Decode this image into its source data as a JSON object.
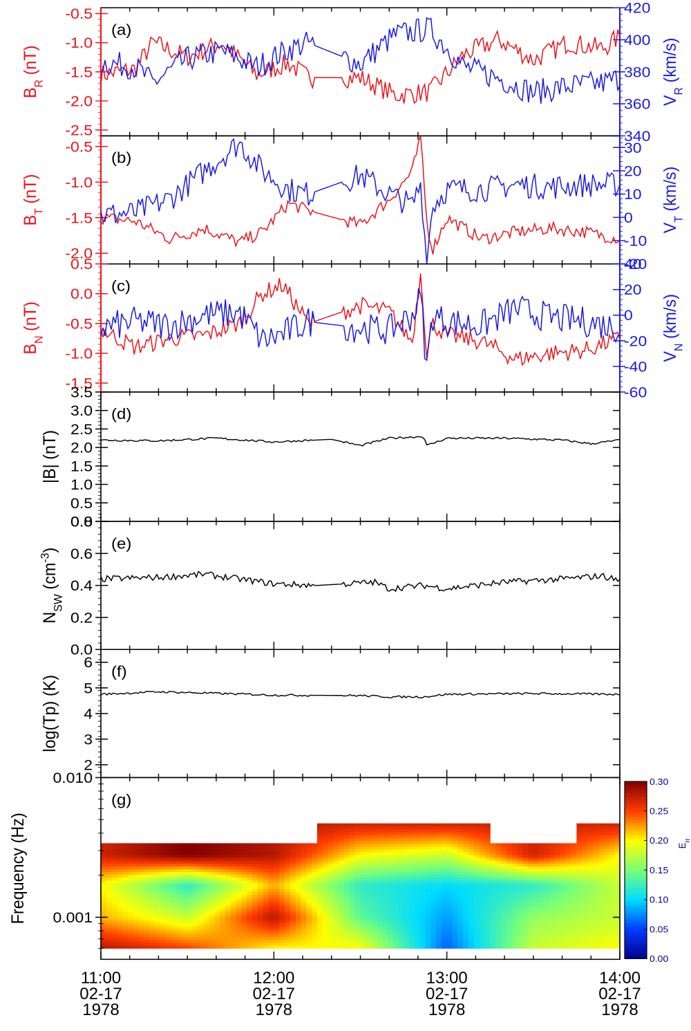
{
  "colors": {
    "left_series": "#e8141a",
    "right_series": "#1a1ae0",
    "single_series": "#000000",
    "axis": "#000000"
  },
  "x_axis": {
    "range": [
      "1978-02-17T11:00",
      "1978-02-17T14:00"
    ],
    "ticks": [
      {
        "time": "11:00",
        "date": "02-17",
        "year": "1978"
      },
      {
        "time": "12:00",
        "date": "02-17",
        "year": "1978"
      },
      {
        "time": "13:00",
        "date": "02-17",
        "year": "1978"
      },
      {
        "time": "14:00",
        "date": "02-17",
        "year": "1978"
      }
    ],
    "data_gap": [
      "1978-02-17T12:14",
      "1978-02-17T12:24"
    ]
  },
  "panels": {
    "a": {
      "label": "(a)",
      "left_ylabel": "B_R (nT)",
      "right_ylabel": "V_R (km/s)"
    },
    "b": {
      "label": "(b)",
      "left_ylabel": "B_T (nT)",
      "right_ylabel": "V_T (km/s)"
    },
    "c": {
      "label": "(c)",
      "left_ylabel": "B_N (nT)",
      "right_ylabel": "V_N (km/s)"
    },
    "d": {
      "label": "(d)",
      "ylabel": "|B| (nT)"
    },
    "e": {
      "label": "(e)",
      "ylabel": "N_SW (cm^-3)"
    },
    "f": {
      "label": "(f)",
      "ylabel": "log(Tp) (K)"
    },
    "g": {
      "label": "(g)",
      "ylabel": "Frequency (Hz)",
      "colorbar_label": "E_rr"
    }
  },
  "chart_data": [
    {
      "type": "line",
      "panel": "a",
      "series": [
        {
          "name": "B_R (nT)",
          "axis": "left",
          "color": "#e8141a",
          "t": [
            "11:00",
            "11:12",
            "11:18",
            "11:30",
            "11:42",
            "11:54",
            "12:05",
            "12:12",
            "12:30",
            "12:42",
            "12:54",
            "13:06",
            "13:18",
            "13:30",
            "13:42",
            "13:54",
            "14:00"
          ],
          "values": [
            -1.55,
            -1.45,
            -1.0,
            -1.25,
            -1.0,
            -1.55,
            -1.35,
            -1.6,
            -1.6,
            -1.9,
            -1.85,
            -1.2,
            -0.95,
            -1.3,
            -1.0,
            -1.1,
            -0.9
          ]
        },
        {
          "name": "V_R (km/s)",
          "axis": "right",
          "color": "#1a1ae0",
          "t": [
            "11:00",
            "11:12",
            "11:18",
            "11:30",
            "11:42",
            "11:54",
            "12:05",
            "12:12",
            "12:30",
            "12:42",
            "12:54",
            "13:06",
            "13:18",
            "13:30",
            "13:42",
            "13:54",
            "14:00"
          ],
          "values": [
            386,
            383,
            373,
            388,
            393,
            383,
            394,
            398,
            385,
            403,
            407,
            383,
            376,
            367,
            371,
            373,
            376
          ]
        }
      ],
      "ylim_left": [
        -2.6,
        -0.4
      ],
      "yticks_left": [
        -2.5,
        -2.0,
        -1.5,
        -1.0,
        -0.5
      ],
      "ylim_right": [
        340,
        420
      ],
      "yticks_right": [
        340,
        360,
        380,
        400,
        420
      ]
    },
    {
      "type": "line",
      "panel": "b",
      "series": [
        {
          "name": "B_T (nT)",
          "axis": "left",
          "color": "#e8141a",
          "t": [
            "11:00",
            "11:12",
            "11:24",
            "11:36",
            "11:48",
            "11:56",
            "12:05",
            "12:12",
            "12:30",
            "12:40",
            "12:48",
            "12:51",
            "12:53",
            "12:55",
            "13:00",
            "13:12",
            "13:24",
            "13:36",
            "13:48",
            "14:00"
          ],
          "values": [
            -1.5,
            -1.55,
            -1.8,
            -1.65,
            -1.85,
            -1.7,
            -1.3,
            -1.4,
            -1.6,
            -1.25,
            -0.85,
            -0.35,
            -1.55,
            -1.95,
            -1.5,
            -1.8,
            -1.7,
            -1.65,
            -1.7,
            -1.8
          ]
        },
        {
          "name": "V_T (km/s)",
          "axis": "right",
          "color": "#1a1ae0",
          "t": [
            "11:00",
            "11:12",
            "11:24",
            "11:36",
            "11:48",
            "11:56",
            "12:05",
            "12:12",
            "12:30",
            "12:40",
            "12:48",
            "12:51",
            "12:53",
            "12:55",
            "13:00",
            "13:12",
            "13:24",
            "13:36",
            "13:48",
            "14:00"
          ],
          "values": [
            1,
            2,
            8,
            20,
            32,
            20,
            12,
            10,
            18,
            10,
            5,
            15,
            -20,
            5,
            12,
            12,
            14,
            13,
            14,
            14
          ]
        }
      ],
      "ylim_left": [
        -2.15,
        -0.35
      ],
      "yticks_left": [
        -2.0,
        -1.5,
        -1.0,
        -0.5
      ],
      "ylim_right": [
        -20,
        35
      ],
      "yticks_right": [
        -20,
        -10,
        0,
        10,
        20,
        30
      ]
    },
    {
      "type": "line",
      "panel": "c",
      "series": [
        {
          "name": "B_N (nT)",
          "axis": "left",
          "color": "#e8141a",
          "t": [
            "11:00",
            "11:12",
            "11:24",
            "11:36",
            "11:48",
            "11:56",
            "12:03",
            "12:12",
            "12:30",
            "12:40",
            "12:48",
            "12:51",
            "12:53",
            "12:55",
            "13:00",
            "13:12",
            "13:24",
            "13:36",
            "13:48",
            "14:00"
          ],
          "values": [
            -0.6,
            -0.9,
            -0.75,
            -0.7,
            -0.5,
            0.0,
            0.15,
            -0.5,
            -0.2,
            -0.3,
            -0.8,
            0.4,
            -1.0,
            -0.5,
            -0.7,
            -0.8,
            -1.1,
            -1.0,
            -0.95,
            -0.75
          ]
        },
        {
          "name": "V_N (km/s)",
          "axis": "right",
          "color": "#1a1ae0",
          "t": [
            "11:00",
            "11:12",
            "11:24",
            "11:36",
            "11:48",
            "11:56",
            "12:03",
            "12:12",
            "12:30",
            "12:40",
            "12:48",
            "12:51",
            "12:53",
            "12:55",
            "13:00",
            "13:12",
            "13:24",
            "13:36",
            "13:48",
            "14:00"
          ],
          "values": [
            -10,
            -5,
            -8,
            0,
            2,
            -20,
            -15,
            -5,
            -10,
            -12,
            0,
            15,
            -42,
            0,
            -5,
            -8,
            5,
            -2,
            -5,
            -10
          ]
        }
      ],
      "ylim_left": [
        -1.65,
        0.5
      ],
      "yticks_left": [
        -1.5,
        -1.0,
        -0.5,
        0.0,
        0.5
      ],
      "ylim_right": [
        -60,
        40
      ],
      "yticks_right": [
        -60,
        -40,
        -20,
        0,
        20,
        40
      ]
    },
    {
      "type": "line",
      "panel": "d",
      "series": [
        {
          "name": "|B| (nT)",
          "color": "#000000",
          "t": [
            "11:00",
            "11:20",
            "11:40",
            "12:00",
            "12:20",
            "12:30",
            "12:40",
            "12:52",
            "12:53",
            "13:00",
            "13:20",
            "13:40",
            "13:50",
            "14:00"
          ],
          "values": [
            2.2,
            2.18,
            2.25,
            2.15,
            2.22,
            2.05,
            2.25,
            2.3,
            2.05,
            2.25,
            2.25,
            2.2,
            2.1,
            2.2
          ]
        }
      ],
      "ylim": [
        0.0,
        3.5
      ],
      "yticks": [
        0.0,
        0.5,
        1.0,
        1.5,
        2.0,
        2.5,
        3.0,
        3.5
      ]
    },
    {
      "type": "line",
      "panel": "e",
      "series": [
        {
          "name": "N_SW (cm^-3)",
          "color": "#000000",
          "t": [
            "11:00",
            "11:20",
            "11:36",
            "12:00",
            "12:15",
            "12:35",
            "12:40",
            "12:52",
            "13:00",
            "13:20",
            "13:40",
            "13:54",
            "14:00"
          ],
          "values": [
            0.44,
            0.45,
            0.47,
            0.41,
            0.4,
            0.42,
            0.38,
            0.4,
            0.38,
            0.42,
            0.44,
            0.46,
            0.43
          ]
        }
      ],
      "ylim": [
        0.0,
        0.8
      ],
      "yticks": [
        0.0,
        0.2,
        0.4,
        0.6,
        0.8
      ]
    },
    {
      "type": "line",
      "panel": "f",
      "series": [
        {
          "name": "log(Tp) (K)",
          "color": "#000000",
          "t": [
            "11:00",
            "11:20",
            "11:36",
            "12:00",
            "12:30",
            "12:40",
            "12:52",
            "13:00",
            "13:30",
            "14:00"
          ],
          "values": [
            4.75,
            4.85,
            4.8,
            4.72,
            4.7,
            4.65,
            4.65,
            4.75,
            4.78,
            4.75
          ]
        }
      ],
      "ylim": [
        1.5,
        6.5
      ],
      "yticks": [
        2,
        3,
        4,
        5,
        6
      ]
    },
    {
      "type": "heatmap",
      "panel": "g",
      "description_axis": "frequency vs time",
      "yscale": "log",
      "ylim": [
        0.0005,
        0.01
      ],
      "yticks": [
        0.001,
        0.01
      ],
      "ytick_labels": [
        "0.001",
        "0.010"
      ],
      "colorbar": {
        "label": "E_rr",
        "range": [
          0.0,
          0.3
        ],
        "ticks": [
          0.0,
          0.05,
          0.1,
          0.15,
          0.2,
          0.25,
          0.3
        ],
        "tick_labels": [
          "0.00",
          "0.05",
          "0.10",
          "0.15",
          "0.20",
          "0.25",
          "0.30"
        ]
      },
      "t": [
        "11:00",
        "11:30",
        "12:00",
        "12:30",
        "13:00",
        "13:30",
        "14:00"
      ],
      "freq": [
        0.0006,
        0.001,
        0.0017,
        0.0028,
        0.0047
      ],
      "values": [
        [
          0.28,
          0.25,
          0.2,
          0.2,
          0.06,
          0.18,
          0.2
        ],
        [
          0.22,
          0.18,
          0.28,
          0.14,
          0.08,
          0.16,
          0.18
        ],
        [
          0.2,
          0.12,
          0.22,
          0.12,
          0.1,
          0.12,
          0.18
        ],
        [
          0.27,
          0.3,
          0.28,
          0.2,
          0.18,
          0.27,
          0.2
        ],
        [
          0.0,
          0.0,
          0.0,
          0.27,
          0.27,
          0.0,
          0.27
        ]
      ]
    }
  ]
}
